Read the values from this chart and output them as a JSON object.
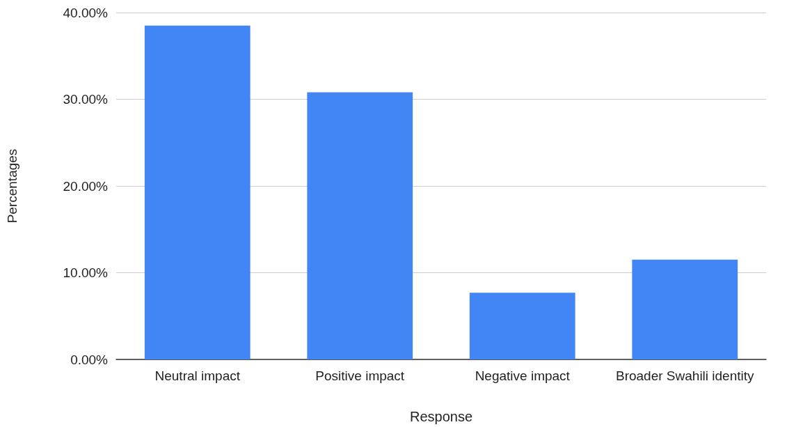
{
  "chart_data": {
    "type": "bar",
    "xlabel": "Response",
    "ylabel": "Percentages",
    "categories": [
      "Neutral impact",
      "Positive impact",
      "Negative impact",
      "Broader Swahili identity"
    ],
    "values": [
      38.5,
      30.8,
      7.7,
      11.5
    ],
    "color": "#4285f4",
    "ylim": [
      0,
      40
    ],
    "yticks": [
      {
        "value": 0,
        "label": "0.00%"
      },
      {
        "value": 10,
        "label": "10.00%"
      },
      {
        "value": 20,
        "label": "20.00%"
      },
      {
        "value": 30,
        "label": "30.00%"
      },
      {
        "value": 40,
        "label": "40.00%"
      }
    ],
    "grid": "y"
  }
}
